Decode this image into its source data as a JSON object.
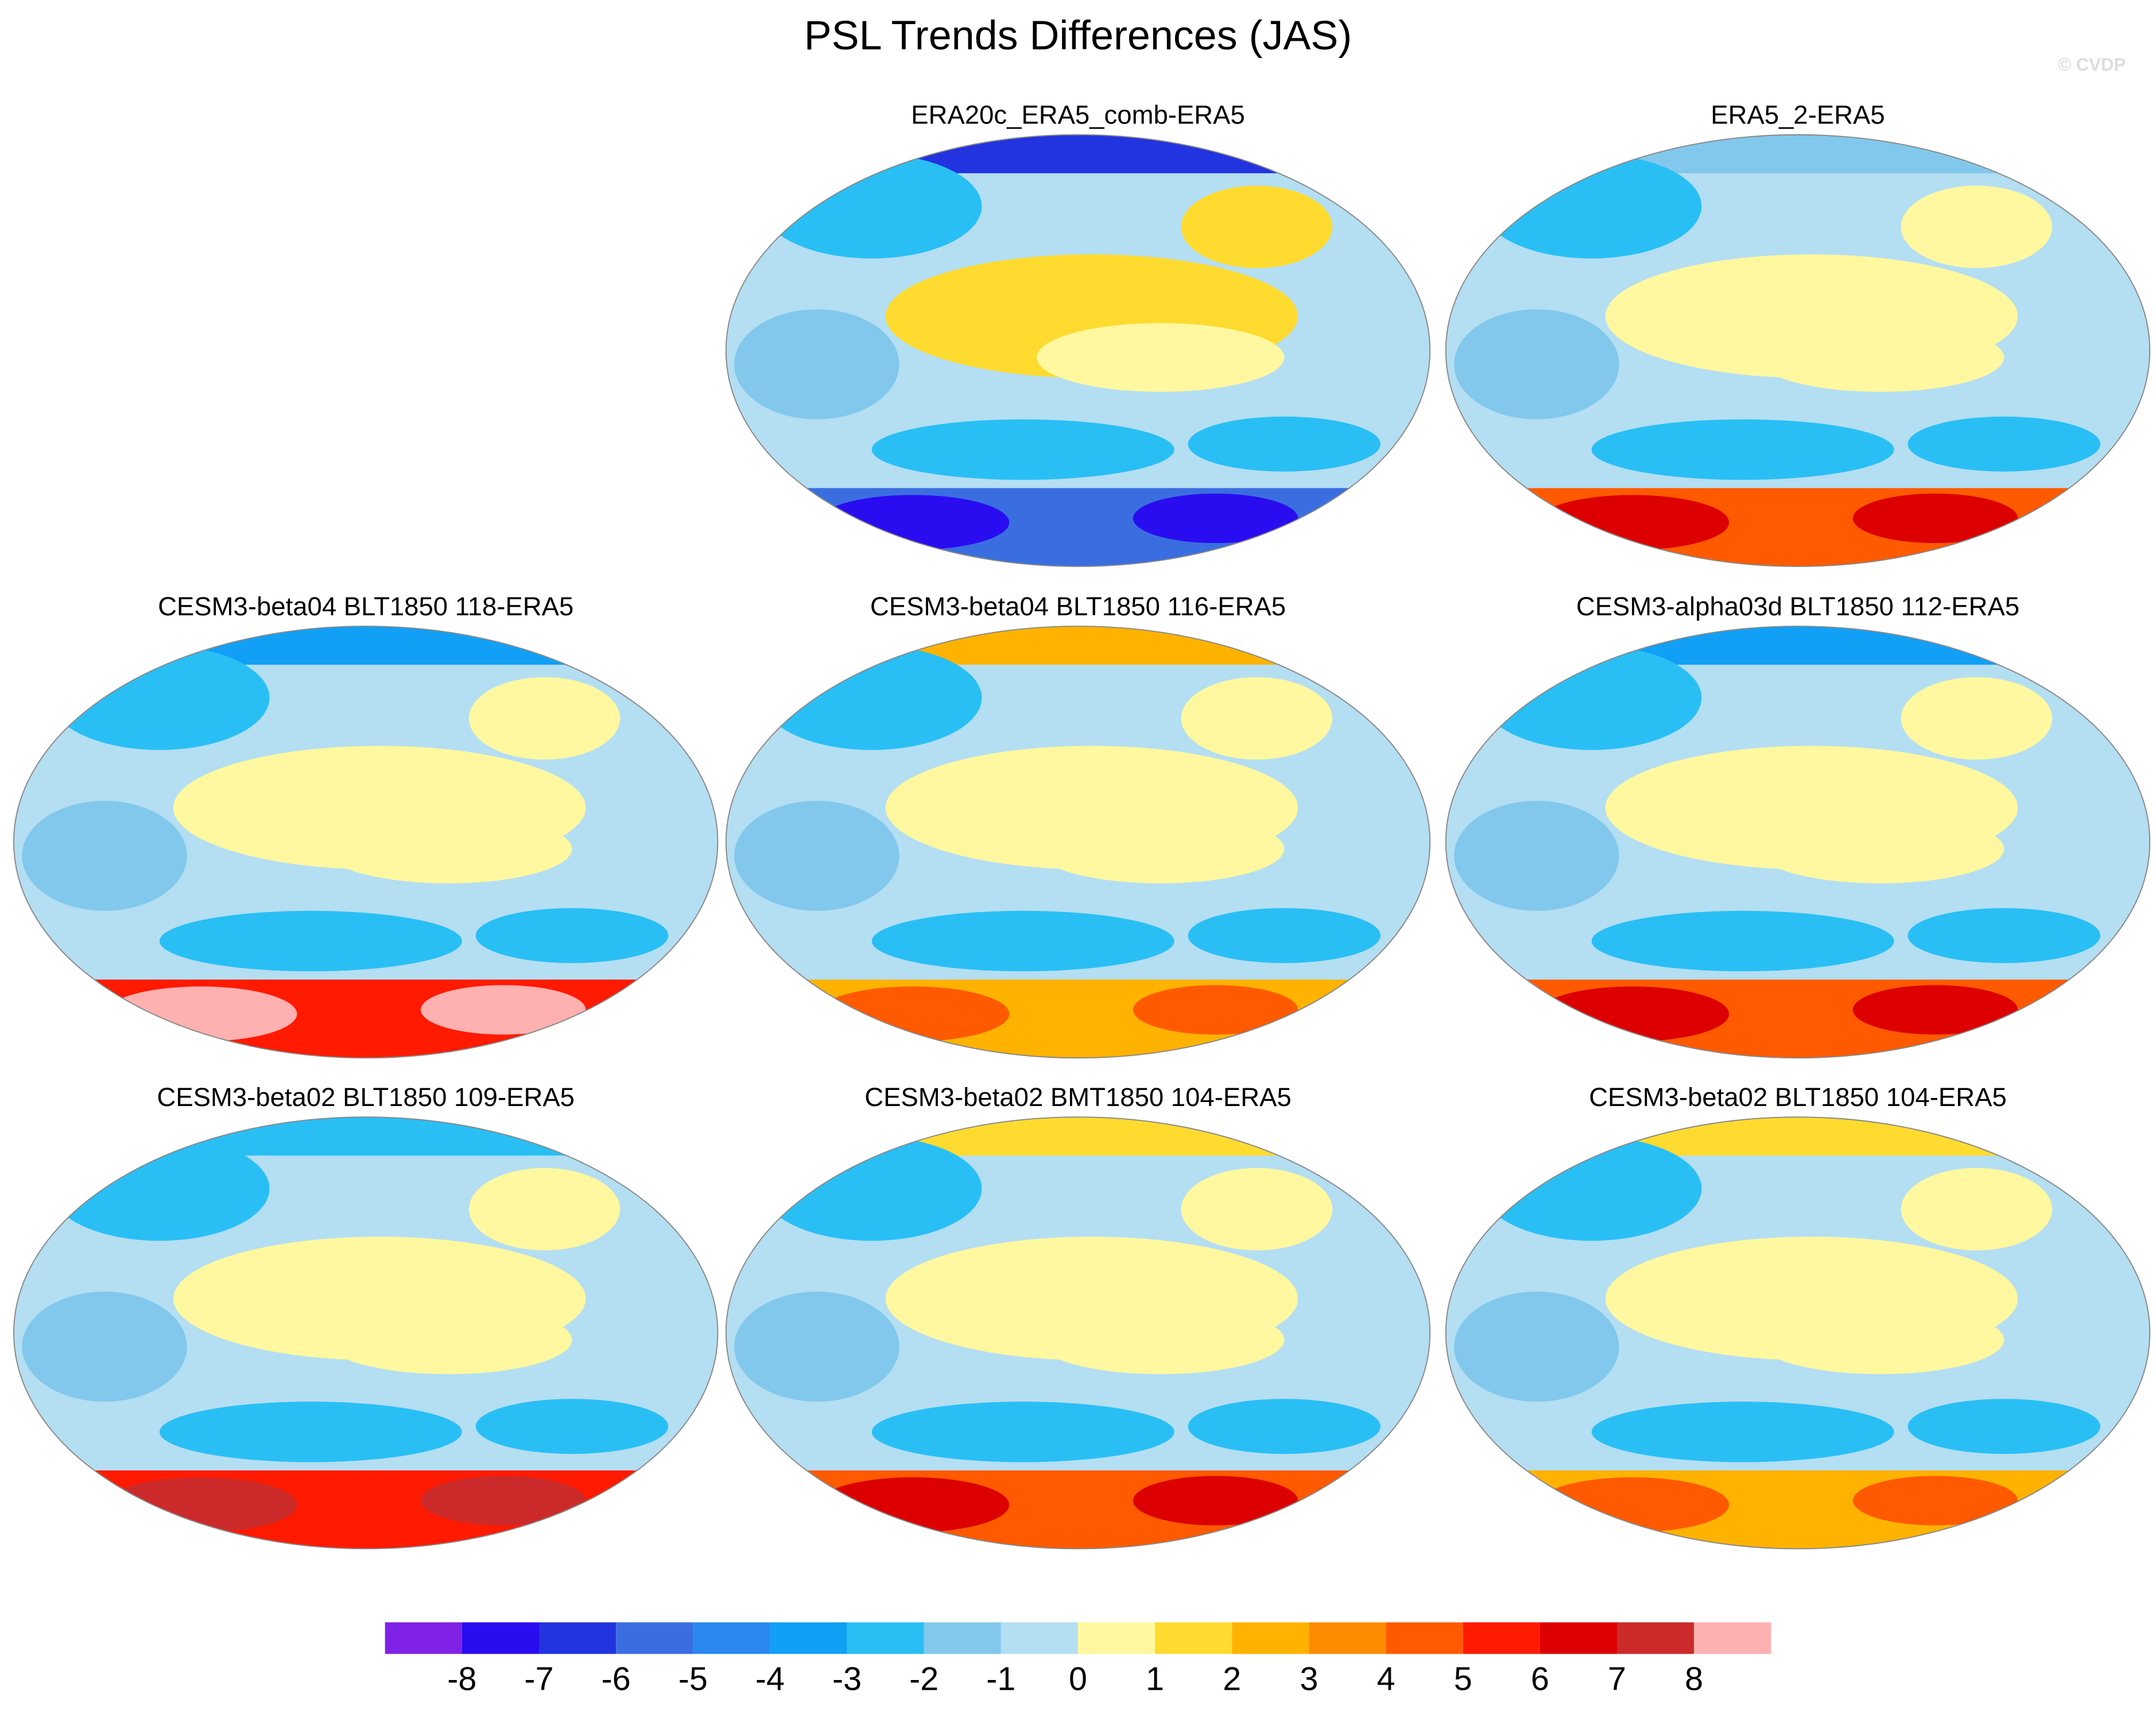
{
  "title": "PSL Trends Differences (JAS)",
  "copyright": "© CVDP",
  "panels": [
    {
      "title": "ERA20c_ERA5_comb-ERA5"
    },
    {
      "title": "ERA5_2-ERA5"
    },
    {
      "title": "CESM3-beta04 BLT1850 118-ERA5"
    },
    {
      "title": "CESM3-beta04 BLT1850 116-ERA5"
    },
    {
      "title": "CESM3-alpha03d BLT1850 112-ERA5"
    },
    {
      "title": "CESM3-beta02 BLT1850 109-ERA5"
    },
    {
      "title": "CESM3-beta02 BMT1850 104-ERA5"
    },
    {
      "title": "CESM3-beta02 BLT1850 104-ERA5"
    }
  ],
  "colorbar": {
    "colors": [
      "#7f22e6",
      "#2a0cf0",
      "#2233e0",
      "#3a6ee0",
      "#2b88f0",
      "#11a0f5",
      "#29bff5",
      "#82c8ec",
      "#b4def2",
      "#fff8a0",
      "#ffdb30",
      "#ffb300",
      "#ff8c00",
      "#ff5a00",
      "#ff1a00",
      "#dd0000",
      "#cc2a2a",
      "#ffb0b0"
    ],
    "ticks": [
      -8,
      -7,
      -6,
      -5,
      -4,
      -3,
      -2,
      -1,
      0,
      1,
      2,
      3,
      4,
      5,
      6,
      7,
      8
    ]
  }
}
